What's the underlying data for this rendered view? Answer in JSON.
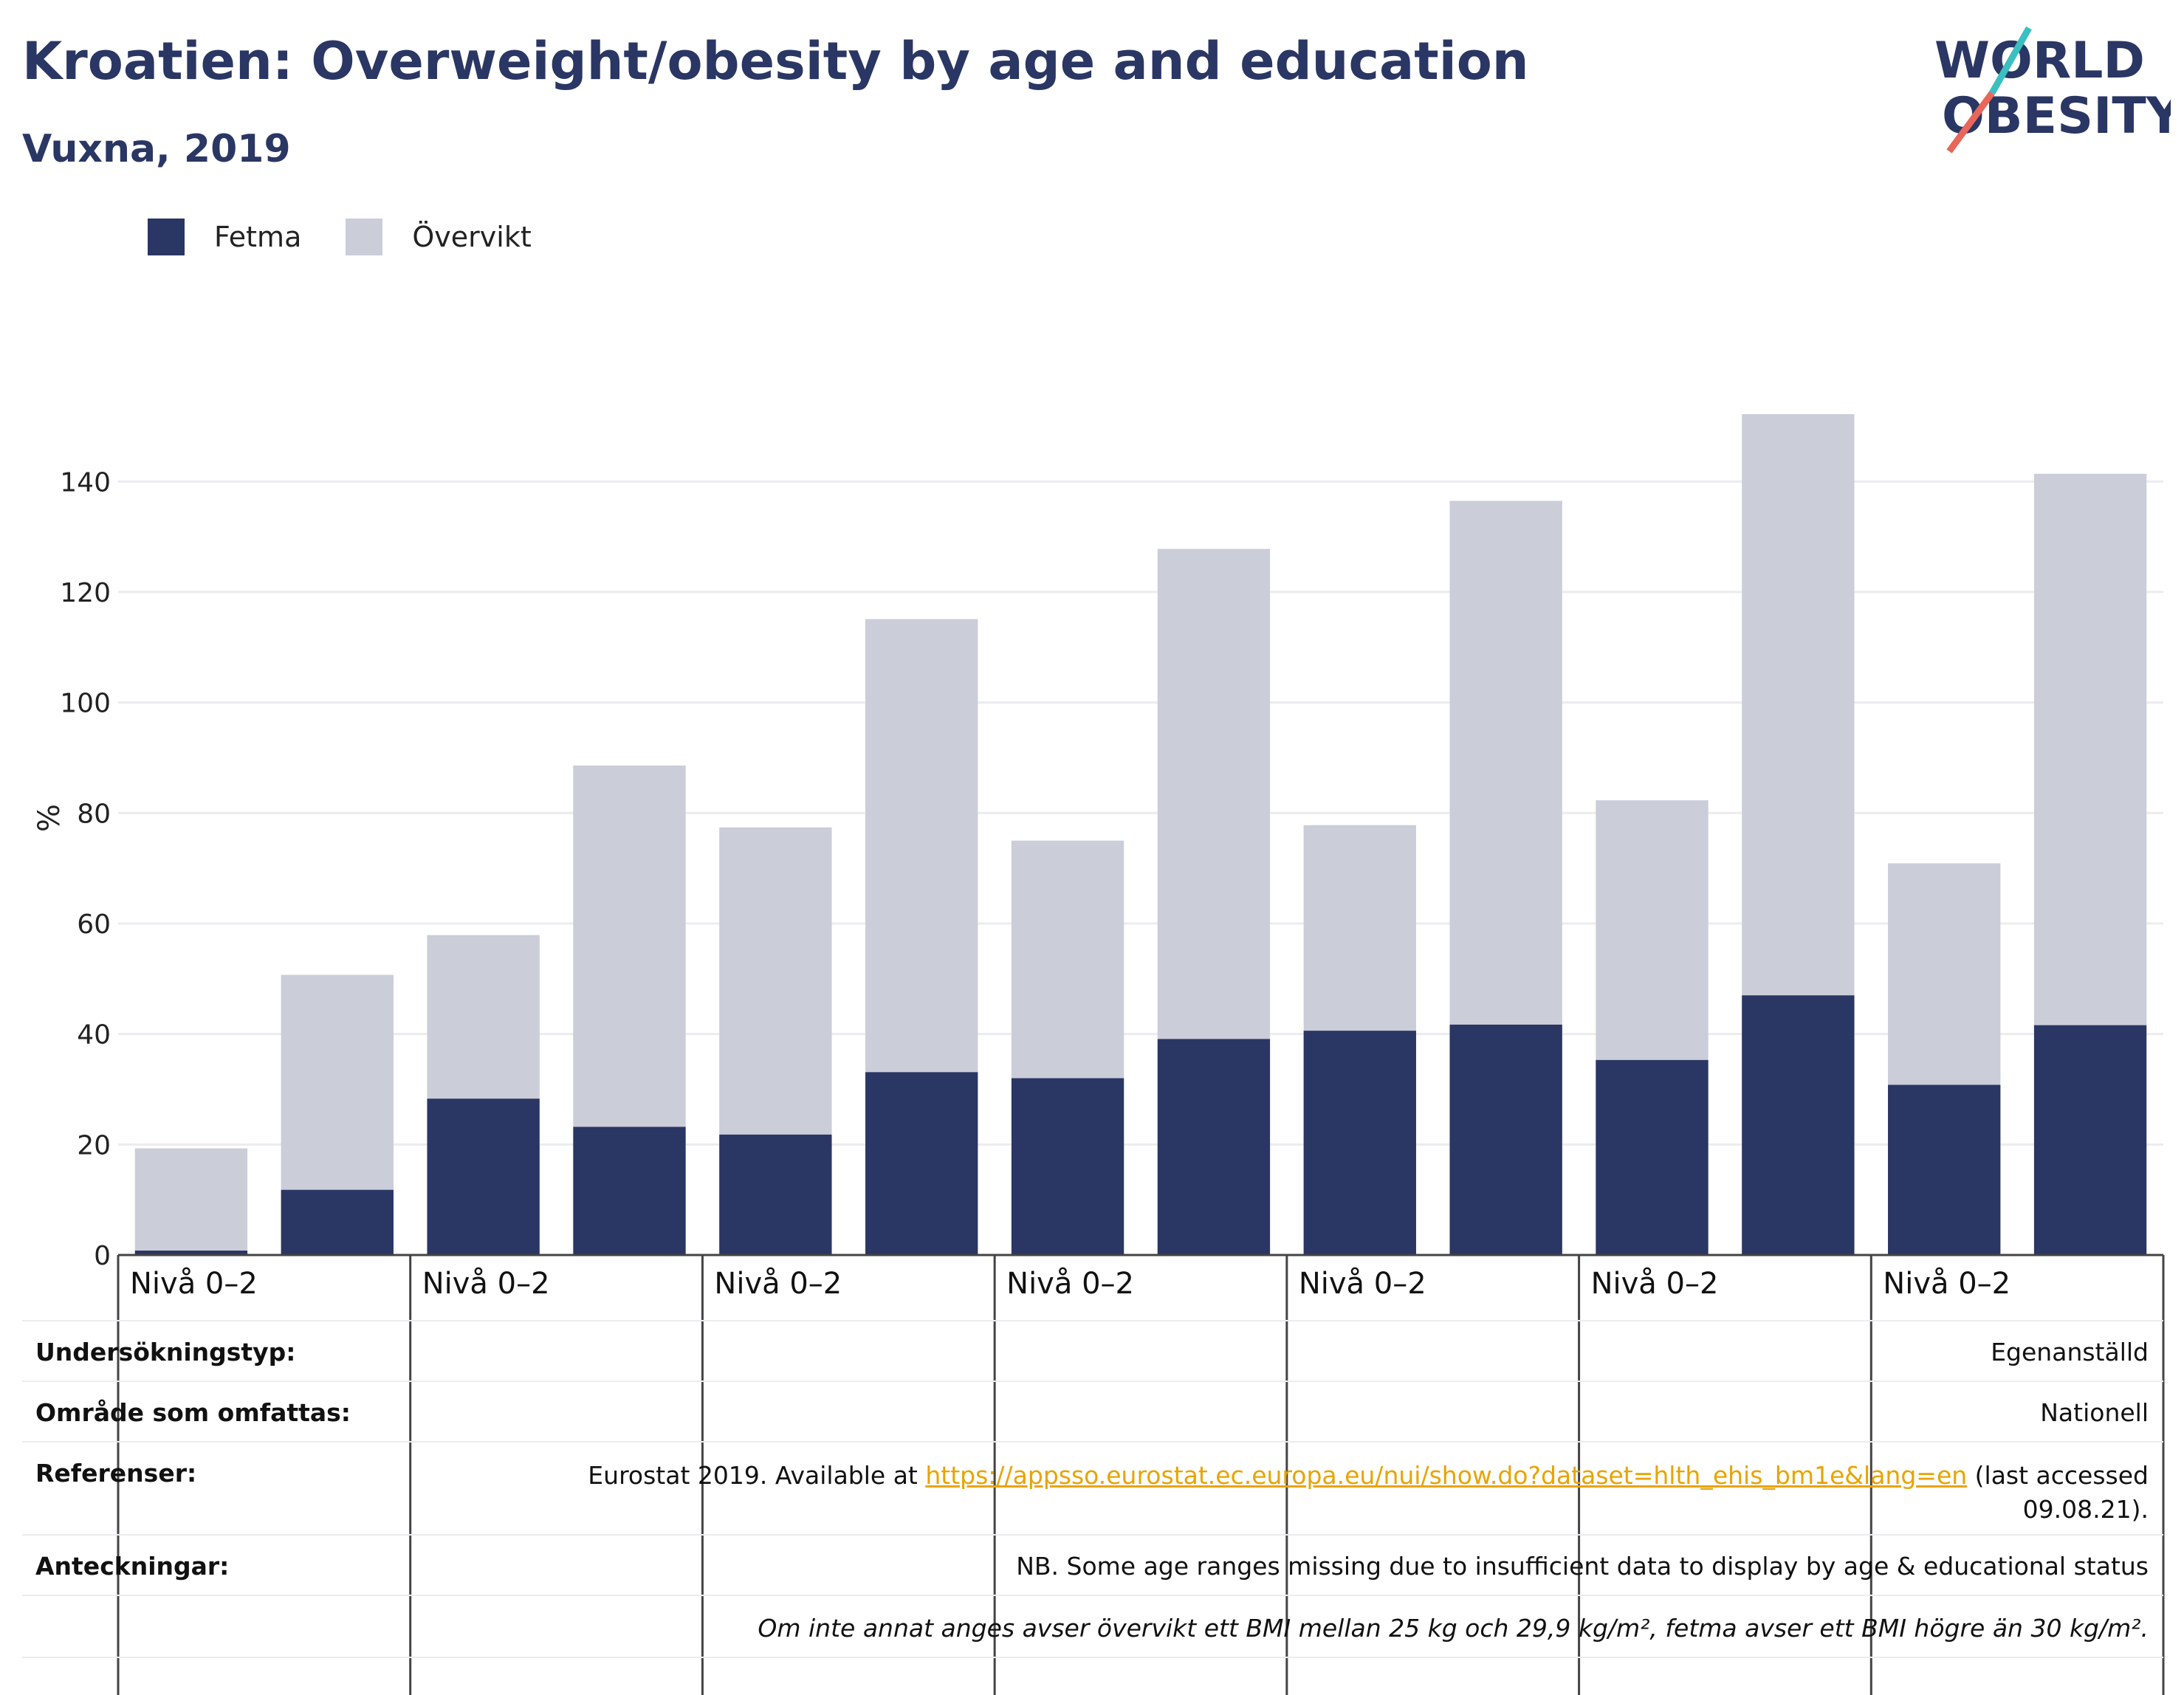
{
  "header": {
    "title": "Kroatien: Overweight/obesity by age and education",
    "subtitle": "Vuxna, 2019"
  },
  "logo": {
    "line1": "WORLD",
    "line2": "OBESITY"
  },
  "colors": {
    "obesity": "#2a3663",
    "overweight": "#cbcdd8",
    "accent_teal": "#3bbfc0",
    "accent_red": "#e8665a"
  },
  "chart_data": {
    "type": "bar",
    "stacked": true,
    "ylabel": "%",
    "ylim": [
      0,
      155
    ],
    "yticks": [
      0,
      20,
      40,
      60,
      80,
      100,
      120,
      140
    ],
    "grid": true,
    "legend_position": "top-left",
    "group_labels": [
      "Nivå 0–2",
      "Nivå 0–2",
      "Nivå 0–2",
      "Nivå 0–2",
      "Nivå 0–2",
      "Nivå 0–2",
      "Nivå 0–2"
    ],
    "series": [
      {
        "name": "Fetma",
        "values": [
          0.8,
          11.8,
          28.3,
          23.2,
          21.8,
          33.1,
          32.0,
          39.1,
          40.6,
          41.7,
          35.3,
          47.0,
          30.8,
          41.6
        ]
      },
      {
        "name": "Övervikt",
        "values": [
          18.5,
          38.9,
          29.6,
          65.4,
          55.6,
          82.0,
          43.0,
          88.7,
          37.2,
          94.8,
          47.0,
          105.2,
          40.1,
          99.8
        ]
      }
    ]
  },
  "footer": {
    "survey_type": {
      "label": "Undersökningstyp:",
      "value": "Egenanställd"
    },
    "area": {
      "label": "Område som omfattas:",
      "value": "Nationell"
    },
    "references": {
      "label": "Referenser:",
      "prefix": "Eurostat 2019. Available at ",
      "link": "https://appsso.eurostat.ec.europa.eu/nui/show.do?dataset=hlth_ehis_bm1e&lang=en",
      "suffix1": " (last accessed",
      "suffix2": "09.08.21)."
    },
    "notes": {
      "label": "Anteckningar:",
      "value": "NB. Some age ranges missing due to insufficient data to display by age & educational status",
      "definition": "Om inte annat anges avser övervikt ett BMI mellan 25 kg och 29,9 kg/m², fetma avser ett BMI högre än 30 kg/m²."
    }
  }
}
